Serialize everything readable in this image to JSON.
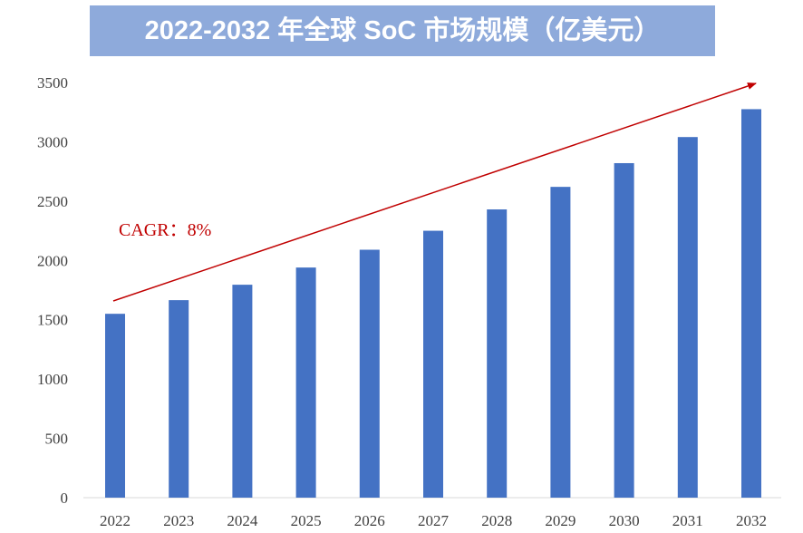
{
  "chart_data": {
    "type": "bar",
    "title": "2022-2032 年全球 SoC 市场规模（亿美元）",
    "categories": [
      "2022",
      "2023",
      "2024",
      "2025",
      "2026",
      "2027",
      "2028",
      "2029",
      "2030",
      "2031",
      "2032"
    ],
    "values": [
      1550,
      1665,
      1795,
      1940,
      2090,
      2250,
      2430,
      2620,
      2820,
      3040,
      3275
    ],
    "ylim": [
      0,
      3500
    ],
    "yticks": [
      0,
      500,
      1000,
      1500,
      2000,
      2500,
      3000,
      3500
    ],
    "xlabel": "",
    "ylabel": "",
    "annotation": "CAGR：8%",
    "bar_color": "#4472c4",
    "annotation_color": "#c00000",
    "grid": false
  }
}
